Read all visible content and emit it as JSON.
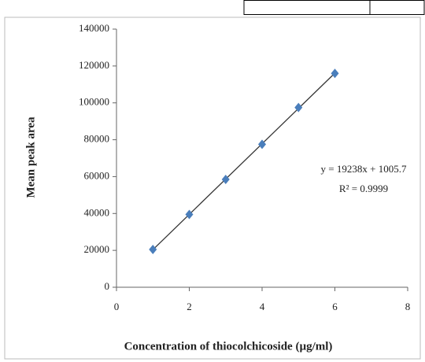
{
  "chart_data": {
    "type": "scatter",
    "x_label": "Concentration of thiocolchicoside (µg/ml)",
    "y_label": "Mean peak area",
    "annotations": [
      "y = 19238x + 1005.7",
      "R² = 0.9999"
    ],
    "x": [
      1,
      2,
      3,
      4,
      5,
      6
    ],
    "series": [
      {
        "color": "#4a7ebb",
        "values": [
          20500,
          39500,
          58500,
          77500,
          97500,
          116000
        ]
      }
    ],
    "trendline_color": "#333333",
    "xlim": [
      0,
      8
    ],
    "xticks": [
      0,
      2,
      4,
      6,
      8
    ],
    "ylim": [
      0,
      140000
    ],
    "yticks": [
      0,
      20000,
      40000,
      60000,
      80000,
      100000,
      120000,
      140000
    ],
    "grid": false
  }
}
